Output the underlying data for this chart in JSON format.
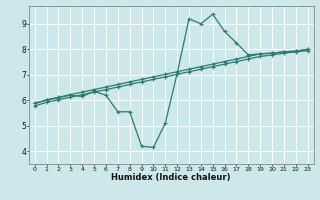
{
  "xlabel": "Humidex (Indice chaleur)",
  "bg_color": "#cce8ea",
  "grid_color": "#ffffff",
  "line_color": "#2d7a6e",
  "xlim": [
    -0.5,
    23.5
  ],
  "ylim": [
    3.5,
    9.7
  ],
  "xticks": [
    0,
    1,
    2,
    3,
    4,
    5,
    6,
    7,
    8,
    9,
    10,
    11,
    12,
    13,
    14,
    15,
    16,
    17,
    18,
    19,
    20,
    21,
    22,
    23
  ],
  "yticks": [
    4,
    5,
    6,
    7,
    8,
    9
  ],
  "series1_x": [
    0,
    1,
    2,
    3,
    4,
    5,
    6,
    7,
    8,
    9,
    10,
    11,
    12,
    13,
    14,
    15,
    16,
    17,
    18,
    19,
    20,
    21,
    22,
    23
  ],
  "series1_y": [
    5.88,
    6.02,
    6.12,
    6.22,
    6.32,
    6.42,
    6.52,
    6.62,
    6.72,
    6.82,
    6.92,
    7.02,
    7.12,
    7.22,
    7.32,
    7.42,
    7.52,
    7.62,
    7.72,
    7.82,
    7.85,
    7.9,
    7.93,
    8.0
  ],
  "series2_x": [
    0,
    1,
    2,
    3,
    4,
    5,
    6,
    7,
    8,
    9,
    10,
    11,
    12,
    13,
    14,
    15,
    16,
    17,
    18,
    19,
    20,
    21,
    22,
    23
  ],
  "series2_y": [
    5.78,
    5.92,
    6.02,
    6.12,
    6.22,
    6.32,
    6.42,
    6.52,
    6.62,
    6.72,
    6.82,
    6.92,
    7.02,
    7.12,
    7.22,
    7.32,
    7.42,
    7.52,
    7.62,
    7.72,
    7.78,
    7.85,
    7.9,
    7.95
  ],
  "series3_x": [
    0,
    1,
    2,
    3,
    4,
    5,
    6,
    7,
    8,
    9,
    10,
    11,
    12,
    13,
    14,
    15,
    16,
    17,
    18,
    19,
    20,
    21,
    22,
    23
  ],
  "series3_y": [
    5.88,
    6.0,
    6.1,
    6.2,
    6.15,
    6.35,
    6.2,
    5.55,
    5.55,
    4.2,
    4.15,
    5.1,
    7.05,
    9.2,
    9.0,
    9.38,
    8.7,
    8.25,
    7.78,
    7.82,
    7.85,
    7.9,
    7.93,
    8.0
  ]
}
